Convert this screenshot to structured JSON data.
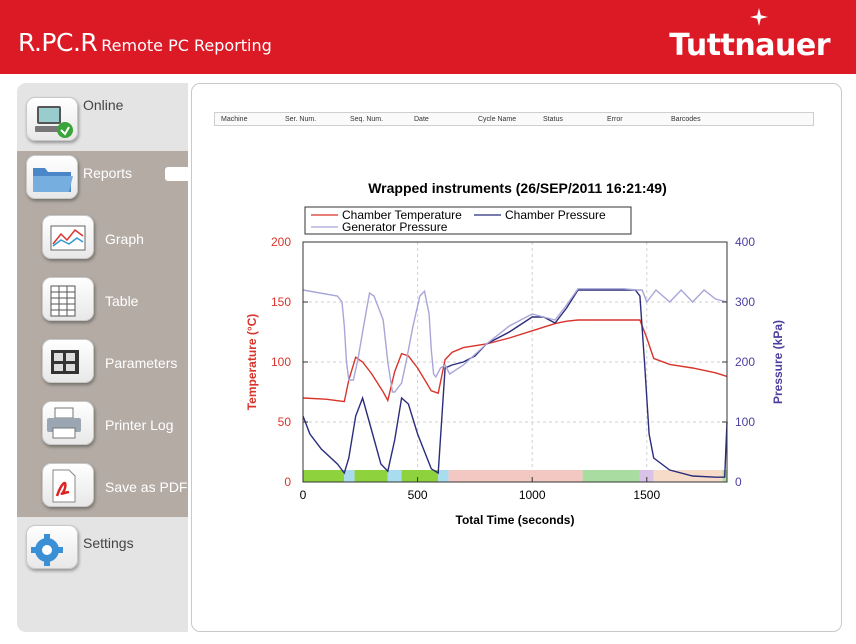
{
  "header": {
    "app_title": "R.PC.R",
    "app_subtitle": "Remote PC Reporting",
    "brand": "Tuttnauer",
    "bg_color": "#dc1a26"
  },
  "sidebar": {
    "items": [
      {
        "label": "Online",
        "icon": "online-computer-icon"
      },
      {
        "label": "Reports",
        "icon": "folder-icon",
        "selected": true
      },
      {
        "label": "Graph",
        "icon": "graph-icon"
      },
      {
        "label": "Table",
        "icon": "table-icon"
      },
      {
        "label": "Parameters",
        "icon": "parameters-icon"
      },
      {
        "label": "Printer Log",
        "icon": "printer-icon"
      },
      {
        "label": "Save as PDF",
        "icon": "pdf-icon"
      },
      {
        "label": "Settings",
        "icon": "gear-icon"
      }
    ]
  },
  "report": {
    "columns": [
      "Machine",
      "Ser. Num.",
      "Seq. Num.",
      "Date",
      "Cycle Name",
      "Status",
      "Error",
      "Barcodes"
    ]
  },
  "chart_data": {
    "type": "line",
    "title": "Wrapped instruments (26/SEP/2011 16:21:49)",
    "xlabel": "Total Time (seconds)",
    "ylabel_left": "Temperature (°C)",
    "ylabel_right": "Pressure (kPa)",
    "xlim": [
      0,
      1850
    ],
    "ylim_left": [
      0,
      200
    ],
    "ylim_right": [
      0,
      400
    ],
    "x_ticks": [
      0,
      500,
      1000,
      1500
    ],
    "y_ticks_left": [
      0,
      50,
      100,
      150,
      200
    ],
    "y_ticks_right": [
      0,
      100,
      200,
      300,
      400
    ],
    "grid": true,
    "legend_position": "top",
    "colors": {
      "temperature": "#d9342b",
      "chamber_pressure": "#2b2c7c",
      "generator_pressure": "#a8a6d8",
      "left_axis": "#d9342b",
      "right_axis": "#4b3f9e"
    },
    "series": [
      {
        "name": "Chamber Temperature",
        "axis": "left",
        "x": [
          0,
          100,
          180,
          200,
          230,
          260,
          300,
          350,
          370,
          400,
          430,
          460,
          500,
          560,
          590,
          620,
          650,
          700,
          800,
          900,
          1000,
          1050,
          1100,
          1150,
          1200,
          1250,
          1300,
          1400,
          1470,
          1500,
          1530,
          1600,
          1700,
          1800,
          1850
        ],
        "values": [
          70,
          69,
          67,
          85,
          104,
          100,
          90,
          75,
          68,
          92,
          107,
          105,
          95,
          76,
          74,
          102,
          108,
          112,
          115,
          120,
          126,
          129,
          132,
          134,
          135,
          135,
          135,
          135,
          135,
          120,
          103,
          98,
          95,
          91,
          88
        ]
      },
      {
        "name": "Chamber Pressure",
        "axis": "right",
        "x": [
          0,
          30,
          80,
          150,
          180,
          200,
          230,
          260,
          300,
          340,
          370,
          400,
          430,
          460,
          500,
          560,
          590,
          620,
          650,
          700,
          750,
          800,
          900,
          1000,
          1050,
          1100,
          1150,
          1200,
          1250,
          1300,
          1400,
          1450,
          1470,
          1490,
          1510,
          1530,
          1600,
          1700,
          1800,
          1840,
          1850
        ],
        "values": [
          110,
          80,
          55,
          30,
          15,
          40,
          110,
          140,
          85,
          30,
          18,
          70,
          140,
          130,
          80,
          22,
          15,
          190,
          195,
          200,
          210,
          230,
          250,
          275,
          275,
          265,
          290,
          320,
          320,
          320,
          320,
          320,
          310,
          200,
          80,
          40,
          20,
          10,
          8,
          8,
          100
        ]
      },
      {
        "name": "Generator Pressure",
        "axis": "right",
        "x": [
          0,
          150,
          170,
          180,
          190,
          200,
          220,
          240,
          260,
          290,
          310,
          330,
          350,
          370,
          390,
          400,
          410,
          430,
          450,
          480,
          510,
          530,
          550,
          560,
          570,
          580,
          600,
          620,
          640,
          700,
          800,
          900,
          1000,
          1050,
          1100,
          1150,
          1200,
          1250,
          1300,
          1400,
          1460,
          1480,
          1500,
          1540,
          1600,
          1650,
          1700,
          1750,
          1800,
          1850
        ],
        "values": [
          320,
          310,
          300,
          260,
          200,
          170,
          170,
          205,
          250,
          315,
          310,
          290,
          270,
          200,
          150,
          150,
          155,
          165,
          200,
          260,
          310,
          318,
          280,
          220,
          180,
          175,
          190,
          195,
          180,
          195,
          230,
          260,
          280,
          275,
          270,
          295,
          322,
          322,
          322,
          322,
          320,
          320,
          300,
          320,
          300,
          320,
          300,
          320,
          305,
          300
        ]
      }
    ],
    "phase_bar": [
      {
        "start": 0,
        "end": 180,
        "color": "#8ed33d"
      },
      {
        "start": 180,
        "end": 225,
        "color": "#a8dcef"
      },
      {
        "start": 225,
        "end": 370,
        "color": "#8ed33d"
      },
      {
        "start": 370,
        "end": 430,
        "color": "#a8dcef"
      },
      {
        "start": 430,
        "end": 590,
        "color": "#8ed33d"
      },
      {
        "start": 590,
        "end": 635,
        "color": "#a8dcef"
      },
      {
        "start": 635,
        "end": 1220,
        "color": "#f4c8c2"
      },
      {
        "start": 1220,
        "end": 1470,
        "color": "#a8dca0"
      },
      {
        "start": 1470,
        "end": 1530,
        "color": "#d8c2e8"
      },
      {
        "start": 1530,
        "end": 1830,
        "color": "#f6dcc8"
      },
      {
        "start": 1830,
        "end": 1850,
        "color": "#b0e0a0"
      }
    ]
  }
}
